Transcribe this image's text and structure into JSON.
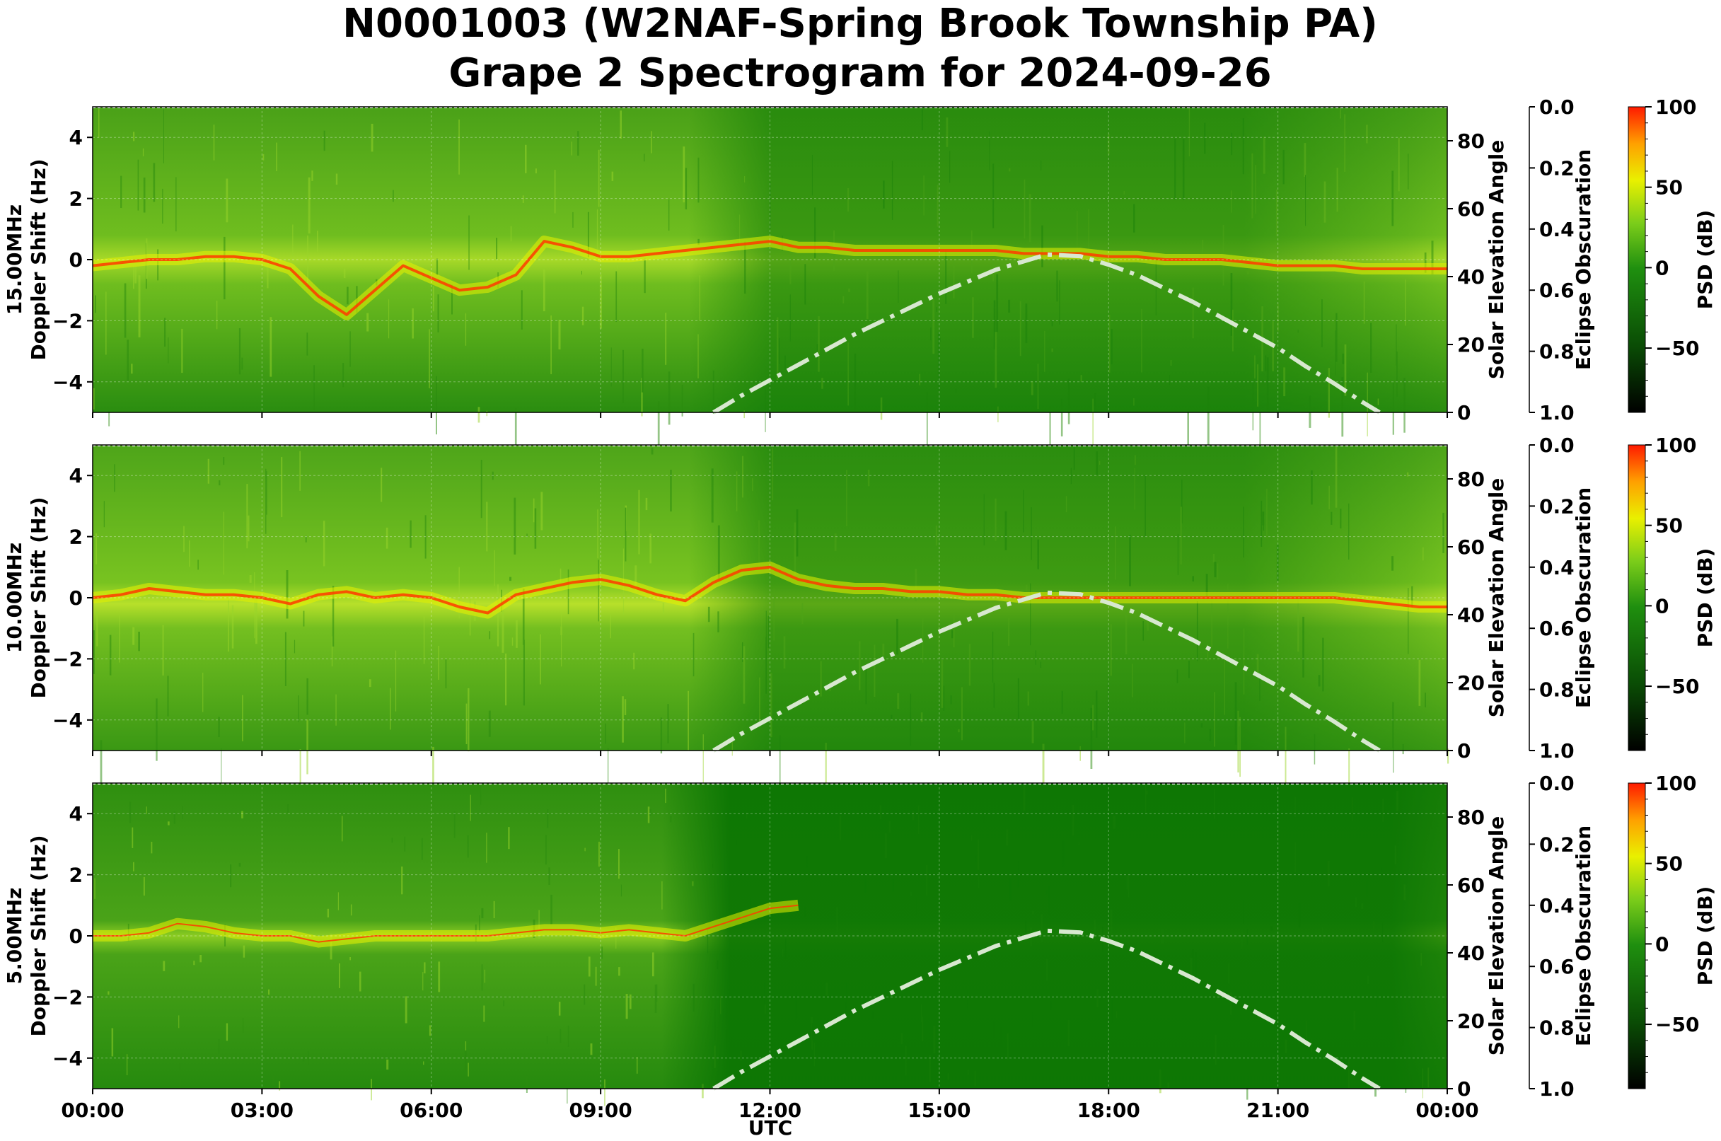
{
  "title": "N0001003 (W2NAF-Spring Brook Township PA)",
  "subtitle": "Grape 2 Spectrogram for 2024-09-26",
  "xlabel": "UTC",
  "colors": {
    "background_green": "#1e8a0c",
    "trace_yellow": "#e8f000",
    "trace_red": "#ff3a00",
    "sun_curve": "#d8e8d0",
    "grid": "#ffffff"
  },
  "chart_data": [
    {
      "type": "heatmap",
      "ylabel_left": "15.00MHz\nDoppler Shift (Hz)",
      "ylabel_right": "Solar Elevation Angle",
      "ylabel_eclipse": "Eclipse Obscuration",
      "colorbar_label": "PSD (dB)",
      "x_ticks": [
        "00:00",
        "03:00",
        "06:00",
        "09:00",
        "12:00",
        "15:00",
        "18:00",
        "21:00",
        "00:00"
      ],
      "xlim_hours": [
        0,
        24
      ],
      "ylim_doppler": [
        -5,
        5
      ],
      "y_ticks_doppler": [
        "−4",
        "−2",
        "0",
        "2",
        "4"
      ],
      "ylim_elevation": [
        0,
        90
      ],
      "y_ticks_elevation": [
        "0",
        "20",
        "40",
        "60",
        "80"
      ],
      "ylim_eclipse": [
        1.0,
        0.0
      ],
      "y_ticks_eclipse": [
        "0.0",
        "0.2",
        "0.4",
        "0.6",
        "0.8",
        "1.0"
      ],
      "colorbar_range": [
        -90,
        100
      ],
      "colorbar_ticks": [
        "100",
        "50",
        "0",
        "−50"
      ],
      "doppler_trace": {
        "hours": [
          0,
          0.5,
          1,
          1.5,
          2,
          2.5,
          3,
          3.5,
          4,
          4.5,
          5,
          5.5,
          6,
          6.5,
          7,
          7.5,
          8,
          8.5,
          9,
          9.5,
          10,
          10.5,
          11,
          11.5,
          12,
          12.5,
          13,
          13.5,
          14,
          14.5,
          15,
          15.5,
          16,
          16.5,
          17,
          17.5,
          18,
          18.5,
          19,
          19.5,
          20,
          20.5,
          21,
          21.5,
          22,
          22.5,
          23,
          23.5,
          24
        ],
        "hz": [
          -0.2,
          -0.1,
          0,
          0,
          0.1,
          0.1,
          0,
          -0.3,
          -1.2,
          -1.8,
          -1,
          -0.2,
          -0.6,
          -1,
          -0.9,
          -0.5,
          0.6,
          0.4,
          0.1,
          0.1,
          0.2,
          0.3,
          0.4,
          0.5,
          0.6,
          0.4,
          0.4,
          0.3,
          0.3,
          0.3,
          0.3,
          0.3,
          0.3,
          0.2,
          0.2,
          0.2,
          0.1,
          0.1,
          0,
          0,
          0,
          -0.1,
          -0.2,
          -0.2,
          -0.2,
          -0.3,
          -0.3,
          -0.3,
          -0.3
        ]
      },
      "solar_elevation": {
        "hours": [
          11,
          11.5,
          12,
          12.5,
          13,
          13.5,
          14,
          14.5,
          15,
          15.5,
          16,
          16.5,
          16.9,
          17.5,
          18,
          18.5,
          19,
          19.5,
          20,
          20.5,
          21,
          21.5,
          22,
          22.5,
          22.8
        ],
        "deg": [
          0,
          5,
          9.5,
          14,
          18.5,
          23,
          27,
          31,
          35,
          38.5,
          42,
          44.5,
          46.5,
          46,
          43.5,
          40.5,
          36.5,
          32.5,
          28,
          23.5,
          19,
          13.5,
          8.5,
          3,
          0
        ]
      }
    },
    {
      "type": "heatmap",
      "ylabel_left": "10.00MHz\nDoppler Shift (Hz)",
      "ylabel_right": "Solar Elevation Angle",
      "ylabel_eclipse": "Eclipse Obscuration",
      "colorbar_label": "PSD (dB)",
      "x_ticks": [
        "00:00",
        "03:00",
        "06:00",
        "09:00",
        "12:00",
        "15:00",
        "18:00",
        "21:00",
        "00:00"
      ],
      "xlim_hours": [
        0,
        24
      ],
      "ylim_doppler": [
        -5,
        5
      ],
      "y_ticks_doppler": [
        "−4",
        "−2",
        "0",
        "2",
        "4"
      ],
      "ylim_elevation": [
        0,
        90
      ],
      "y_ticks_elevation": [
        "0",
        "20",
        "40",
        "60",
        "80"
      ],
      "ylim_eclipse": [
        1.0,
        0.0
      ],
      "y_ticks_eclipse": [
        "0.0",
        "0.2",
        "0.4",
        "0.6",
        "0.8",
        "1.0"
      ],
      "colorbar_range": [
        -90,
        100
      ],
      "colorbar_ticks": [
        "100",
        "50",
        "0",
        "−50"
      ],
      "doppler_trace": {
        "hours": [
          0,
          0.5,
          1,
          1.5,
          2,
          2.5,
          3,
          3.5,
          4,
          4.5,
          5,
          5.5,
          6,
          6.5,
          7,
          7.5,
          8,
          8.5,
          9,
          9.5,
          10,
          10.5,
          11,
          11.5,
          12,
          12.5,
          13,
          13.5,
          14,
          14.5,
          15,
          15.5,
          16,
          16.5,
          17,
          17.5,
          18,
          18.5,
          19,
          19.5,
          20,
          20.5,
          21,
          21.5,
          22,
          22.5,
          23,
          23.5,
          24
        ],
        "hz": [
          0,
          0.1,
          0.3,
          0.2,
          0.1,
          0.1,
          0,
          -0.2,
          0.1,
          0.2,
          0,
          0.1,
          0,
          -0.3,
          -0.5,
          0.1,
          0.3,
          0.5,
          0.6,
          0.4,
          0.1,
          -0.1,
          0.5,
          0.9,
          1,
          0.6,
          0.4,
          0.3,
          0.3,
          0.2,
          0.2,
          0.1,
          0.1,
          0,
          0,
          0,
          0,
          0,
          0,
          0,
          0,
          0,
          0,
          0,
          0,
          -0.1,
          -0.2,
          -0.3,
          -0.3
        ]
      },
      "solar_elevation": {
        "hours": [
          11,
          11.5,
          12,
          12.5,
          13,
          13.5,
          14,
          14.5,
          15,
          15.5,
          16,
          16.5,
          16.9,
          17.5,
          18,
          18.5,
          19,
          19.5,
          20,
          20.5,
          21,
          21.5,
          22,
          22.5,
          22.8
        ],
        "deg": [
          0,
          5,
          9.5,
          14,
          18.5,
          23,
          27,
          31,
          35,
          38.5,
          42,
          44.5,
          46.5,
          46,
          43.5,
          40.5,
          36.5,
          32.5,
          28,
          23.5,
          19,
          13.5,
          8.5,
          3,
          0
        ]
      }
    },
    {
      "type": "heatmap",
      "ylabel_left": "5.00MHz\nDoppler Shift (Hz)",
      "ylabel_right": "Solar Elevation Angle",
      "ylabel_eclipse": "Eclipse Obscuration",
      "colorbar_label": "PSD (dB)",
      "x_ticks": [
        "00:00",
        "03:00",
        "06:00",
        "09:00",
        "12:00",
        "15:00",
        "18:00",
        "21:00",
        "00:00"
      ],
      "xlim_hours": [
        0,
        24
      ],
      "ylim_doppler": [
        -5,
        5
      ],
      "y_ticks_doppler": [
        "−4",
        "−2",
        "0",
        "2",
        "4"
      ],
      "ylim_elevation": [
        0,
        90
      ],
      "y_ticks_elevation": [
        "0",
        "20",
        "40",
        "60",
        "80"
      ],
      "ylim_eclipse": [
        1.0,
        0.0
      ],
      "y_ticks_eclipse": [
        "0.0",
        "0.2",
        "0.4",
        "0.6",
        "0.8",
        "1.0"
      ],
      "colorbar_range": [
        -90,
        100
      ],
      "colorbar_ticks": [
        "100",
        "50",
        "0",
        "−50"
      ],
      "doppler_trace": {
        "hours": [
          0,
          0.5,
          1,
          1.5,
          2,
          2.5,
          3,
          3.5,
          4,
          4.5,
          5,
          5.5,
          6,
          6.5,
          7,
          7.5,
          8,
          8.5,
          9,
          9.5,
          10,
          10.5,
          11,
          11.5,
          12,
          12.5
        ],
        "hz": [
          0,
          0,
          0.1,
          0.4,
          0.3,
          0.1,
          0,
          0,
          -0.2,
          -0.1,
          0,
          0,
          0,
          0,
          0,
          0.1,
          0.2,
          0.2,
          0.1,
          0.2,
          0.1,
          0,
          0.3,
          0.6,
          0.9,
          1
        ]
      },
      "solar_elevation": {
        "hours": [
          11,
          11.5,
          12,
          12.5,
          13,
          13.5,
          14,
          14.5,
          15,
          15.5,
          16,
          16.5,
          16.9,
          17.5,
          18,
          18.5,
          19,
          19.5,
          20,
          20.5,
          21,
          21.5,
          22,
          22.5,
          22.8
        ],
        "deg": [
          0,
          5,
          9.5,
          14,
          18.5,
          23,
          27,
          31,
          35,
          38.5,
          42,
          44.5,
          46.5,
          46,
          43.5,
          40.5,
          36.5,
          32.5,
          28,
          23.5,
          19,
          13.5,
          8.5,
          3,
          0
        ]
      }
    }
  ]
}
